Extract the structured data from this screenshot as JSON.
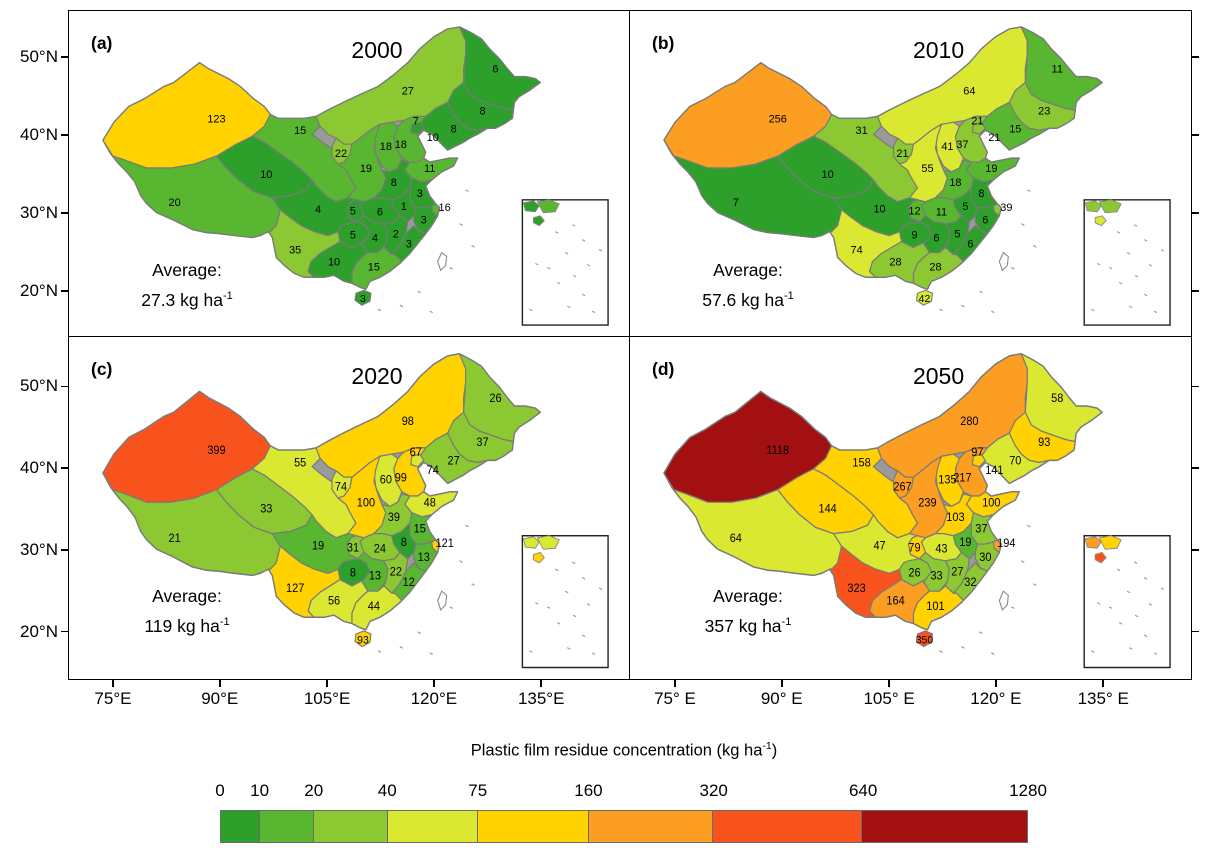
{
  "figure": {
    "panels": [
      {
        "id": "a",
        "letter": "(a)",
        "year": "2000",
        "average_prefix": "Average:",
        "average_value": "27.3 kg ha",
        "average_exp": "-1",
        "values": {
          "xinjiang": 123,
          "tibet": 20,
          "qinghai": 10,
          "gansu": 15,
          "inner_mongolia": 27,
          "heilongjiang": 6,
          "jilin": 8,
          "liaoning": 8,
          "hebei": 18,
          "beijing": 7,
          "tianjin": 10,
          "shanxi": 18,
          "shandong": 11,
          "ningxia": 22,
          "shaanxi": 19,
          "henan": 8,
          "jiangsu": 3,
          "anhui": 1,
          "shanghai": 16,
          "zhejiang": 3,
          "hubei": 6,
          "chongqing": 5,
          "sichuan": 4,
          "guizhou": 5,
          "hunan": 4,
          "jiangxi": 2,
          "fujian": 3,
          "guangdong": 15,
          "guangxi": 10,
          "yunnan": 35,
          "hainan": 3
        }
      },
      {
        "id": "b",
        "letter": "(b)",
        "year": "2010",
        "average_prefix": "Average:",
        "average_value": "57.6 kg ha",
        "average_exp": "-1",
        "values": {
          "xinjiang": 256,
          "tibet": 7,
          "qinghai": 10,
          "gansu": 31,
          "inner_mongolia": 64,
          "heilongjiang": 11,
          "jilin": 23,
          "liaoning": 15,
          "hebei": 37,
          "beijing": 21,
          "tianjin": 21,
          "shanxi": 41,
          "shandong": 19,
          "ningxia": 21,
          "shaanxi": 55,
          "henan": 18,
          "jiangsu": 8,
          "anhui": 5,
          "shanghai": 39,
          "zhejiang": 6,
          "hubei": 11,
          "chongqing": 12,
          "sichuan": 10,
          "guizhou": 9,
          "hunan": 6,
          "jiangxi": 5,
          "fujian": 6,
          "guangdong": 28,
          "guangxi": 28,
          "yunnan": 74,
          "hainan": 42
        }
      },
      {
        "id": "c",
        "letter": "(c)",
        "year": "2020",
        "average_prefix": "Average:",
        "average_value": "119 kg ha",
        "average_exp": "-1",
        "values": {
          "xinjiang": 399,
          "tibet": 21,
          "qinghai": 33,
          "gansu": 55,
          "inner_mongolia": 98,
          "heilongjiang": 26,
          "jilin": 37,
          "liaoning": 27,
          "hebei": 99,
          "beijing": 67,
          "tianjin": 74,
          "shanxi": 60,
          "shandong": 48,
          "ningxia": 74,
          "shaanxi": 100,
          "henan": 39,
          "jiangsu": 15,
          "anhui": 8,
          "shanghai": 121,
          "zhejiang": 13,
          "hubei": 24,
          "chongqing": 31,
          "sichuan": 19,
          "guizhou": 8,
          "hunan": 13,
          "jiangxi": 22,
          "fujian": 12,
          "guangdong": 44,
          "guangxi": 56,
          "yunnan": 127,
          "hainan": 93
        }
      },
      {
        "id": "d",
        "letter": "(d)",
        "year": "2050",
        "average_prefix": "Average:",
        "average_value": "357 kg ha",
        "average_exp": "-1",
        "values": {
          "xinjiang": 1118,
          "tibet": 64,
          "qinghai": 144,
          "gansu": 158,
          "inner_mongolia": 280,
          "heilongjiang": 58,
          "jilin": 93,
          "liaoning": 70,
          "hebei": 217,
          "beijing": 97,
          "tianjin": 141,
          "shanxi": 135,
          "shandong": 100,
          "ningxia": 267,
          "shaanxi": 239,
          "henan": 103,
          "jiangsu": 37,
          "anhui": 19,
          "shanghai": 194,
          "zhejiang": 30,
          "hubei": 43,
          "chongqing": 79,
          "sichuan": 47,
          "guizhou": 26,
          "hunan": 33,
          "jiangxi": 27,
          "fujian": 32,
          "guangdong": 101,
          "guangxi": 164,
          "yunnan": 323,
          "hainan": 350
        }
      }
    ],
    "axes": {
      "y_ticks": [
        "50°N",
        "40°N",
        "30°N",
        "20°N"
      ],
      "x_ticks_left": [
        "75°E",
        "90°E",
        "105°E",
        "120°E",
        "135°E"
      ],
      "x_ticks_right": [
        "75° E",
        "90° E",
        "105° E",
        "120° E",
        "135° E"
      ]
    },
    "colorbar": {
      "title_prefix": "Plastic film residue concentration (kg ha",
      "title_exp": "-1",
      "title_suffix": ")",
      "tick_labels": [
        "0",
        "10",
        "20",
        "40",
        "75",
        "160",
        "320",
        "640",
        "1280"
      ],
      "breaks": [
        0,
        10,
        20,
        40,
        75,
        160,
        320,
        640,
        1280
      ],
      "colors": [
        "#2da02b",
        "#58b630",
        "#8cc832",
        "#dbe831",
        "#ffd200",
        "#fb9e21",
        "#f8531d",
        "#a31011"
      ]
    }
  },
  "chart_data": {
    "type": "choropleth",
    "title": "Plastic film residue concentration (kg ha-1)",
    "unit": "kg ha-1",
    "legend_position": "bottom",
    "regions": [
      "Xinjiang",
      "Tibet",
      "Qinghai",
      "Gansu",
      "Inner Mongolia",
      "Heilongjiang",
      "Jilin",
      "Liaoning",
      "Hebei",
      "Beijing",
      "Tianjin",
      "Shanxi",
      "Shandong",
      "Ningxia",
      "Shaanxi",
      "Henan",
      "Jiangsu",
      "Anhui",
      "Shanghai",
      "Zhejiang",
      "Hubei",
      "Chongqing",
      "Sichuan",
      "Guizhou",
      "Hunan",
      "Jiangxi",
      "Fujian",
      "Guangdong",
      "Guangxi",
      "Yunnan",
      "Hainan"
    ],
    "series": [
      {
        "name": "2000",
        "average": 27.3,
        "values": [
          123,
          20,
          10,
          15,
          27,
          6,
          8,
          8,
          18,
          7,
          10,
          18,
          11,
          22,
          19,
          8,
          3,
          1,
          16,
          3,
          6,
          5,
          4,
          5,
          4,
          2,
          3,
          15,
          10,
          35,
          3
        ]
      },
      {
        "name": "2010",
        "average": 57.6,
        "values": [
          256,
          7,
          10,
          31,
          64,
          11,
          23,
          15,
          37,
          21,
          21,
          41,
          19,
          21,
          55,
          18,
          8,
          5,
          39,
          6,
          11,
          12,
          10,
          9,
          6,
          5,
          6,
          28,
          28,
          74,
          42
        ]
      },
      {
        "name": "2020",
        "average": 119,
        "values": [
          399,
          21,
          33,
          55,
          98,
          26,
          37,
          27,
          99,
          67,
          74,
          60,
          48,
          74,
          100,
          39,
          15,
          8,
          121,
          13,
          24,
          31,
          19,
          8,
          13,
          22,
          12,
          44,
          56,
          127,
          93
        ]
      },
      {
        "name": "2050",
        "average": 357,
        "values": [
          1118,
          64,
          144,
          158,
          280,
          58,
          93,
          70,
          217,
          97,
          141,
          135,
          100,
          267,
          239,
          103,
          37,
          19,
          194,
          30,
          43,
          79,
          47,
          26,
          33,
          27,
          32,
          101,
          164,
          323,
          350
        ]
      }
    ],
    "color_scale": {
      "breaks": [
        0,
        10,
        20,
        40,
        75,
        160,
        320,
        640,
        1280
      ],
      "colors": [
        "#2da02b",
        "#58b630",
        "#8cc832",
        "#dbe831",
        "#ffd200",
        "#fb9e21",
        "#f8531d",
        "#a31011"
      ]
    },
    "axes": {
      "lon_ticks": [
        "75°E",
        "90°E",
        "105°E",
        "120°E",
        "135°E"
      ],
      "lat_ticks": [
        "50°N",
        "40°N",
        "30°N",
        "20°N"
      ]
    }
  }
}
